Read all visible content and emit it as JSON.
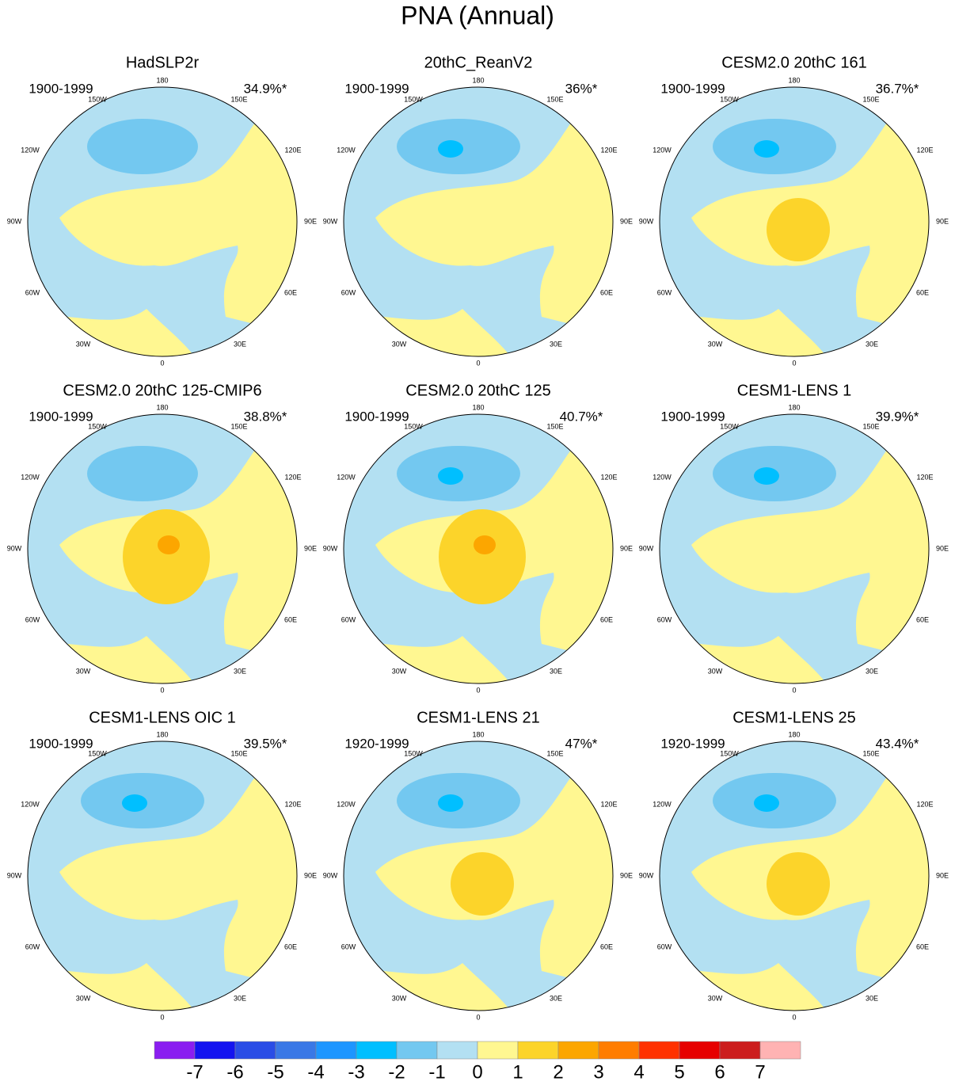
{
  "title": "PNA (Annual)",
  "panels": [
    {
      "title": "HadSLP2r",
      "period": "1900-1999",
      "percent": "34.9%*"
    },
    {
      "title": "20thC_ReanV2",
      "period": "1900-1999",
      "percent": "36%*"
    },
    {
      "title": "CESM2.0 20thC 161",
      "period": "1900-1999",
      "percent": "36.7%*"
    },
    {
      "title": "CESM2.0 20thC 125-CMIP6",
      "period": "1900-1999",
      "percent": "38.8%*"
    },
    {
      "title": "CESM2.0 20thC 125",
      "period": "1900-1999",
      "percent": "40.7%*"
    },
    {
      "title": "CESM1-LENS 1",
      "period": "1900-1999",
      "percent": "39.9%*"
    },
    {
      "title": "CESM1-LENS OIC 1",
      "period": "1900-1999",
      "percent": "39.5%*"
    },
    {
      "title": "CESM1-LENS 21",
      "period": "1920-1999",
      "percent": "47%*"
    },
    {
      "title": "CESM1-LENS 25",
      "period": "1920-1999",
      "percent": "43.4%*"
    }
  ],
  "longitude_labels": [
    "180",
    "150W",
    "150E",
    "120W",
    "120E",
    "90W",
    "90E",
    "60W",
    "60E",
    "30W",
    "30E",
    "0"
  ],
  "colorbar": {
    "colors": [
      "#8a1ef0",
      "#1414f0",
      "#2a4de6",
      "#3a78e6",
      "#1e96ff",
      "#00bfff",
      "#73c8f0",
      "#b3e0f2",
      "#fff791",
      "#fcd42a",
      "#fca600",
      "#ff7d00",
      "#ff3200",
      "#e60000",
      "#cc1e1e",
      "#ffb3b3"
    ],
    "labels": [
      -7,
      -6,
      -5,
      -4,
      -3,
      -2,
      -1,
      0,
      1,
      2,
      3,
      4,
      5,
      6,
      7
    ]
  }
}
